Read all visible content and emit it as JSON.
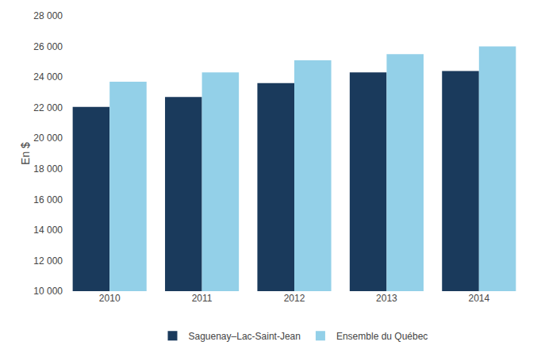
{
  "chart_data": {
    "type": "bar",
    "categories": [
      "2010",
      "2011",
      "2012",
      "2013",
      "2014"
    ],
    "series": [
      {
        "name": "Saguenay–Lac-Saint-Jean",
        "color": "#1a3a5c",
        "values": [
          22050,
          22700,
          23600,
          24300,
          24400
        ]
      },
      {
        "name": "Ensemble du Québec",
        "color": "#93d0e8",
        "values": [
          23700,
          24300,
          25100,
          25500,
          26000
        ]
      }
    ],
    "ylabel": "En $",
    "ylim": [
      10000,
      28000
    ],
    "yticks": [
      {
        "value": 10000,
        "label": "10 000"
      },
      {
        "value": 12000,
        "label": "12 000"
      },
      {
        "value": 14000,
        "label": "14 000"
      },
      {
        "value": 16000,
        "label": "16 000"
      },
      {
        "value": 18000,
        "label": "18 000"
      },
      {
        "value": 20000,
        "label": "20 000"
      },
      {
        "value": 22000,
        "label": "22 000"
      },
      {
        "value": 24000,
        "label": "24 000"
      },
      {
        "value": 26000,
        "label": "26 000"
      },
      {
        "value": 28000,
        "label": "28 000"
      }
    ],
    "grid": false,
    "legend": "bottom"
  }
}
